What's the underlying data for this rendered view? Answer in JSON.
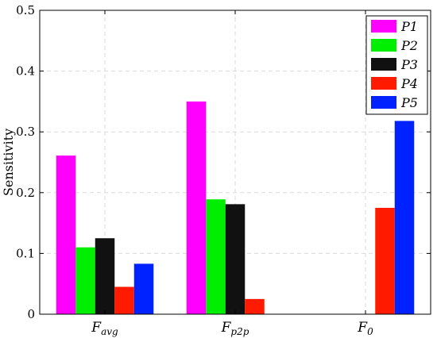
{
  "chart_data": {
    "type": "bar",
    "ylabel": "Sensitivity",
    "xlabel": "",
    "ylim": [
      0,
      0.5
    ],
    "yticks": [
      "0",
      "0.1",
      "0.2",
      "0.3",
      "0.4",
      "0.5"
    ],
    "grid": true,
    "legend_position": "top-right",
    "categories": [
      {
        "main": "F",
        "sub": "avg"
      },
      {
        "main": "F",
        "sub": "p2p"
      },
      {
        "main": "F",
        "sub": "0"
      }
    ],
    "series": [
      {
        "name": "P1",
        "color": "#ff00ff",
        "values": [
          0.261,
          0.35,
          0
        ]
      },
      {
        "name": "P2",
        "color": "#00ee00",
        "values": [
          0.11,
          0.189,
          0
        ]
      },
      {
        "name": "P3",
        "color": "#111111",
        "values": [
          0.125,
          0.181,
          0
        ]
      },
      {
        "name": "P4",
        "color": "#ff1a00",
        "values": [
          0.045,
          0.025,
          0.175
        ]
      },
      {
        "name": "P5",
        "color": "#0022ff",
        "values": [
          0.083,
          0,
          0.318
        ]
      }
    ]
  }
}
